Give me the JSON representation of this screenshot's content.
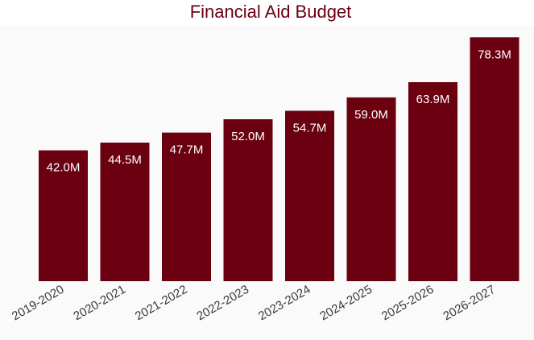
{
  "chart_data": {
    "type": "bar",
    "title": "Financial Aid Budget",
    "xlabel": "",
    "ylabel": "",
    "categories": [
      "2019-2020",
      "2020-2021",
      "2021-2022",
      "2022-2023",
      "2023-2024",
      "2024-2025",
      "2025-2026",
      "2026-2027"
    ],
    "values": [
      42.0,
      44.5,
      47.7,
      52.0,
      54.7,
      59.0,
      63.9,
      78.3
    ],
    "value_labels": [
      "42.0M",
      "44.5M",
      "47.7M",
      "52.0M",
      "54.7M",
      "59.0M",
      "63.9M",
      "78.3M"
    ],
    "ylim": [
      0,
      82
    ],
    "grid": false,
    "legend": "none",
    "colors": {
      "bar": "#6a0010",
      "title": "#6a0010",
      "tick_label": "#3a3a3a",
      "value_label": "#ffffff",
      "plot_background": "#fafafa"
    }
  }
}
